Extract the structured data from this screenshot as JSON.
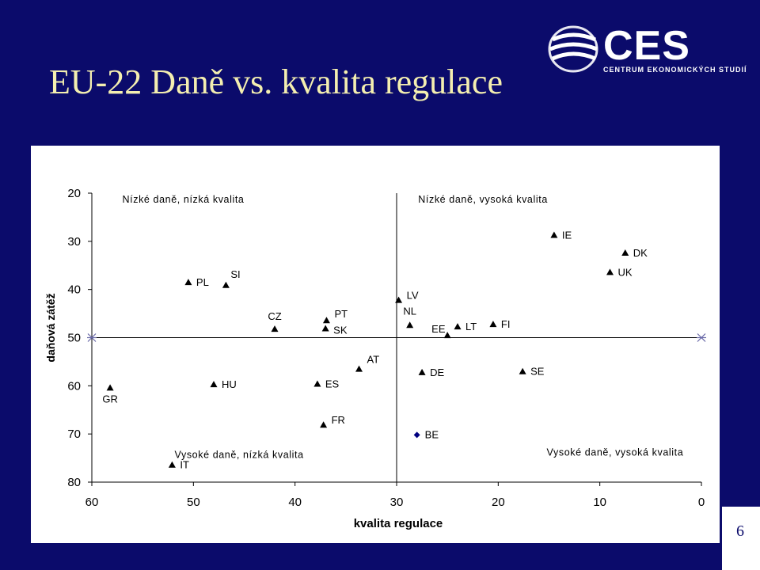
{
  "slide": {
    "title": "EU-22 Daně vs. kvalita regulace",
    "page_number": "6",
    "logo_main": "CES",
    "logo_sub": "CENTRUM EKONOMICKÝCH STUDIÍ"
  },
  "colors": {
    "background": "#0b0b6b",
    "title": "#f4efb0",
    "marker": "#000000",
    "marker_highlight": "#000080"
  },
  "chart_data": {
    "type": "scatter",
    "xlabel": "kvalita regulace",
    "ylabel": "daňová zátěž",
    "xlim": [
      60,
      0
    ],
    "ylim": [
      20,
      80
    ],
    "x_ticks": [
      "60",
      "50",
      "40",
      "30",
      "20",
      "10",
      "0"
    ],
    "y_ticks": [
      "20",
      "30",
      "40",
      "50",
      "60",
      "70",
      "80"
    ],
    "reference_lines": {
      "x": 30,
      "y": 50
    },
    "quadrant_labels": [
      {
        "text": "Nízké daně, nízká kvalita",
        "x": 51,
        "y": 22
      },
      {
        "text": "Nízké daně, vysoká kvalita",
        "x": 21.5,
        "y": 22
      },
      {
        "text": "Vysoké daně, nízká kvalita",
        "x": 45.5,
        "y": 75
      },
      {
        "text": "Vysoké daně, vysoká kvalita",
        "x": 8.5,
        "y": 74.5
      }
    ],
    "points": [
      {
        "label": "IE",
        "x": 14.5,
        "y": 28.8,
        "marker": "triangle"
      },
      {
        "label": "DK",
        "x": 7.5,
        "y": 32.5,
        "marker": "triangle"
      },
      {
        "label": "UK",
        "x": 9,
        "y": 36.5,
        "marker": "triangle"
      },
      {
        "label": "PL",
        "x": 50.5,
        "y": 38.6,
        "marker": "triangle"
      },
      {
        "label": "SI",
        "x": 46.8,
        "y": 39.2,
        "marker": "triangle"
      },
      {
        "label": "LV",
        "x": 29.8,
        "y": 42.3,
        "marker": "triangle"
      },
      {
        "label": "CZ",
        "x": 42,
        "y": 48.3,
        "marker": "triangle"
      },
      {
        "label": "PT",
        "x": 36.9,
        "y": 46.5,
        "marker": "triangle"
      },
      {
        "label": "SK",
        "x": 37,
        "y": 48.2,
        "marker": "triangle"
      },
      {
        "label": "NL",
        "x": 28.7,
        "y": 47.5,
        "marker": "triangle"
      },
      {
        "label": "EE",
        "x": 25,
        "y": 49.6,
        "marker": "triangle"
      },
      {
        "label": "LT",
        "x": 24,
        "y": 47.8,
        "marker": "triangle"
      },
      {
        "label": "FI",
        "x": 20.5,
        "y": 47.3,
        "marker": "triangle"
      },
      {
        "label": "AT",
        "x": 33.7,
        "y": 56.6,
        "marker": "triangle"
      },
      {
        "label": "DE",
        "x": 27.5,
        "y": 57.3,
        "marker": "triangle"
      },
      {
        "label": "SE",
        "x": 17.6,
        "y": 57.1,
        "marker": "triangle"
      },
      {
        "label": "GR",
        "x": 58.2,
        "y": 60.5,
        "marker": "triangle"
      },
      {
        "label": "HU",
        "x": 48,
        "y": 59.8,
        "marker": "triangle"
      },
      {
        "label": "ES",
        "x": 37.8,
        "y": 59.7,
        "marker": "triangle"
      },
      {
        "label": "FR",
        "x": 37.2,
        "y": 68.2,
        "marker": "triangle"
      },
      {
        "label": "BE",
        "x": 28,
        "y": 70.2,
        "marker": "diamond"
      },
      {
        "label": "IT",
        "x": 52.1,
        "y": 76.5,
        "marker": "triangle"
      }
    ]
  }
}
